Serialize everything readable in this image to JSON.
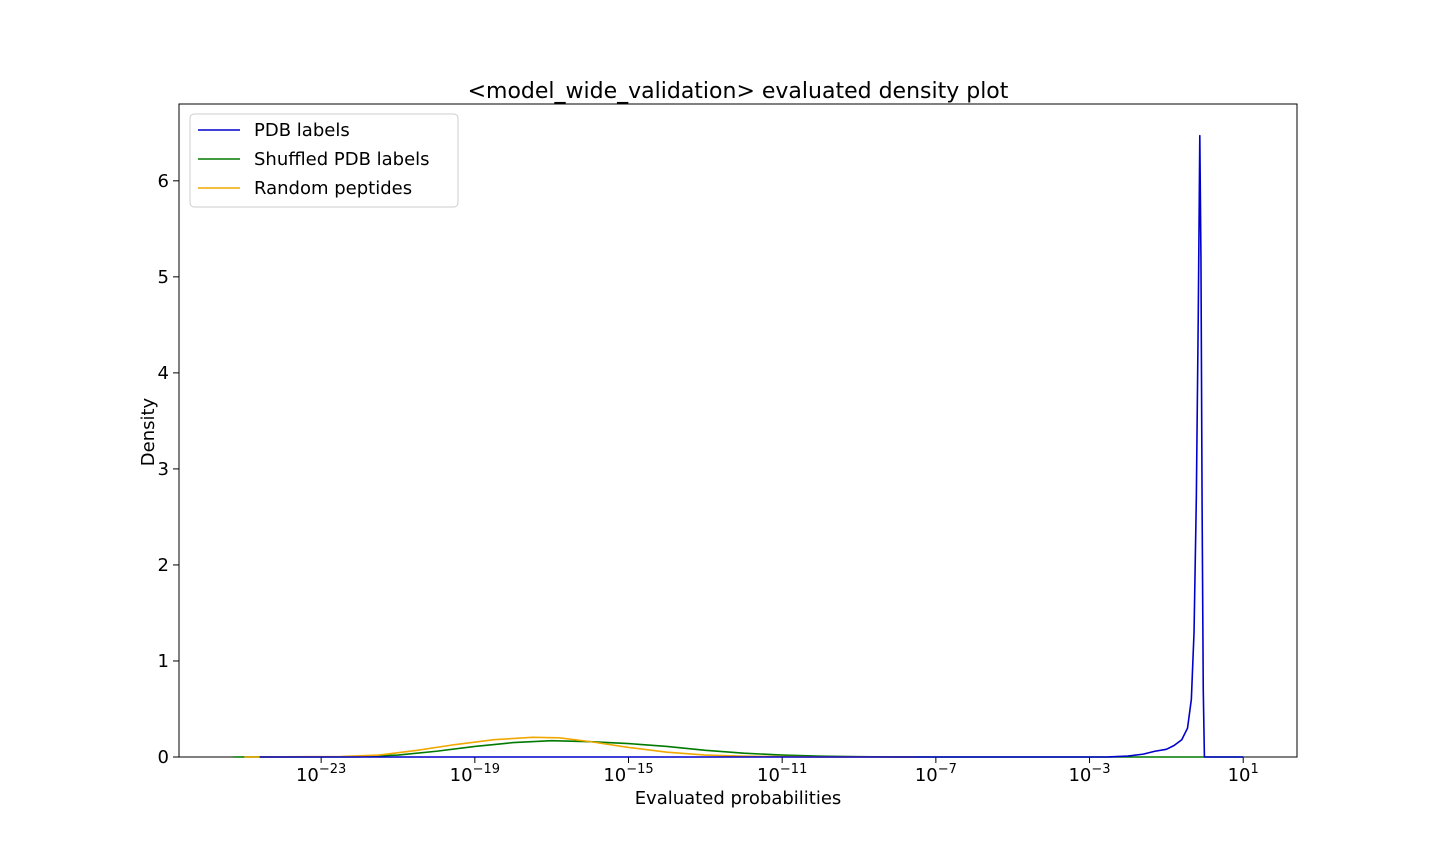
{
  "chart_data": {
    "type": "line",
    "title": "<model_wide_validation> evaluated density plot",
    "xlabel": "Evaluated probabilities",
    "ylabel": "Density",
    "xscale": "log",
    "xlim_log10": [
      -26.7,
      2.4
    ],
    "ylim": [
      0,
      6.8
    ],
    "x_ticks_log10": [
      -23,
      -19,
      -15,
      -11,
      -7,
      -3,
      1
    ],
    "x_tick_base": "10",
    "x_tick_exponents": [
      "−23",
      "−19",
      "−15",
      "−11",
      "−7",
      "−3",
      "1"
    ],
    "y_ticks": [
      0,
      1,
      2,
      3,
      4,
      5,
      6
    ],
    "y_tick_labels": [
      "0",
      "1",
      "2",
      "3",
      "4",
      "5",
      "6"
    ],
    "grid": false,
    "legend_position": "top-left",
    "series": [
      {
        "name": "PDB labels",
        "color": "#0000cc",
        "points": [
          [
            -24.6,
            0.0
          ],
          [
            -10.0,
            0.0
          ],
          [
            -5.0,
            0.0
          ],
          [
            -2.5,
            0.001
          ],
          [
            -2.0,
            0.01
          ],
          [
            -1.6,
            0.03
          ],
          [
            -1.3,
            0.06
          ],
          [
            -1.0,
            0.08
          ],
          [
            -0.8,
            0.12
          ],
          [
            -0.6,
            0.18
          ],
          [
            -0.45,
            0.3
          ],
          [
            -0.35,
            0.6
          ],
          [
            -0.28,
            1.3
          ],
          [
            -0.22,
            2.7
          ],
          [
            -0.17,
            4.6
          ],
          [
            -0.13,
            6.47
          ],
          [
            -0.1,
            5.2
          ],
          [
            -0.07,
            2.6
          ],
          [
            -0.04,
            0.7
          ],
          [
            -0.01,
            0.0
          ],
          [
            1.0,
            0.0
          ]
        ]
      },
      {
        "name": "Shuffled PDB labels",
        "color": "#007a00",
        "points": [
          [
            -25.3,
            0.0
          ],
          [
            -22.0,
            0.002
          ],
          [
            -21.0,
            0.02
          ],
          [
            -20.0,
            0.06
          ],
          [
            -19.0,
            0.11
          ],
          [
            -18.0,
            0.15
          ],
          [
            -17.0,
            0.17
          ],
          [
            -16.0,
            0.16
          ],
          [
            -15.0,
            0.14
          ],
          [
            -14.0,
            0.11
          ],
          [
            -13.0,
            0.07
          ],
          [
            -12.0,
            0.04
          ],
          [
            -11.0,
            0.02
          ],
          [
            -10.0,
            0.008
          ],
          [
            -9.0,
            0.003
          ],
          [
            -8.0,
            0.001
          ],
          [
            -7.0,
            0.0
          ],
          [
            1.0,
            0.0
          ]
        ]
      },
      {
        "name": "Random peptides",
        "color": "#f0a800",
        "points": [
          [
            -25.0,
            0.0
          ],
          [
            -22.5,
            0.005
          ],
          [
            -21.5,
            0.02
          ],
          [
            -20.5,
            0.07
          ],
          [
            -19.5,
            0.13
          ],
          [
            -18.5,
            0.18
          ],
          [
            -17.5,
            0.205
          ],
          [
            -16.8,
            0.2
          ],
          [
            -16.0,
            0.16
          ],
          [
            -15.0,
            0.1
          ],
          [
            -14.0,
            0.05
          ],
          [
            -13.0,
            0.02
          ],
          [
            -12.0,
            0.008
          ],
          [
            -10.0,
            0.001
          ],
          [
            -7.5,
            0.0
          ]
        ]
      }
    ]
  }
}
